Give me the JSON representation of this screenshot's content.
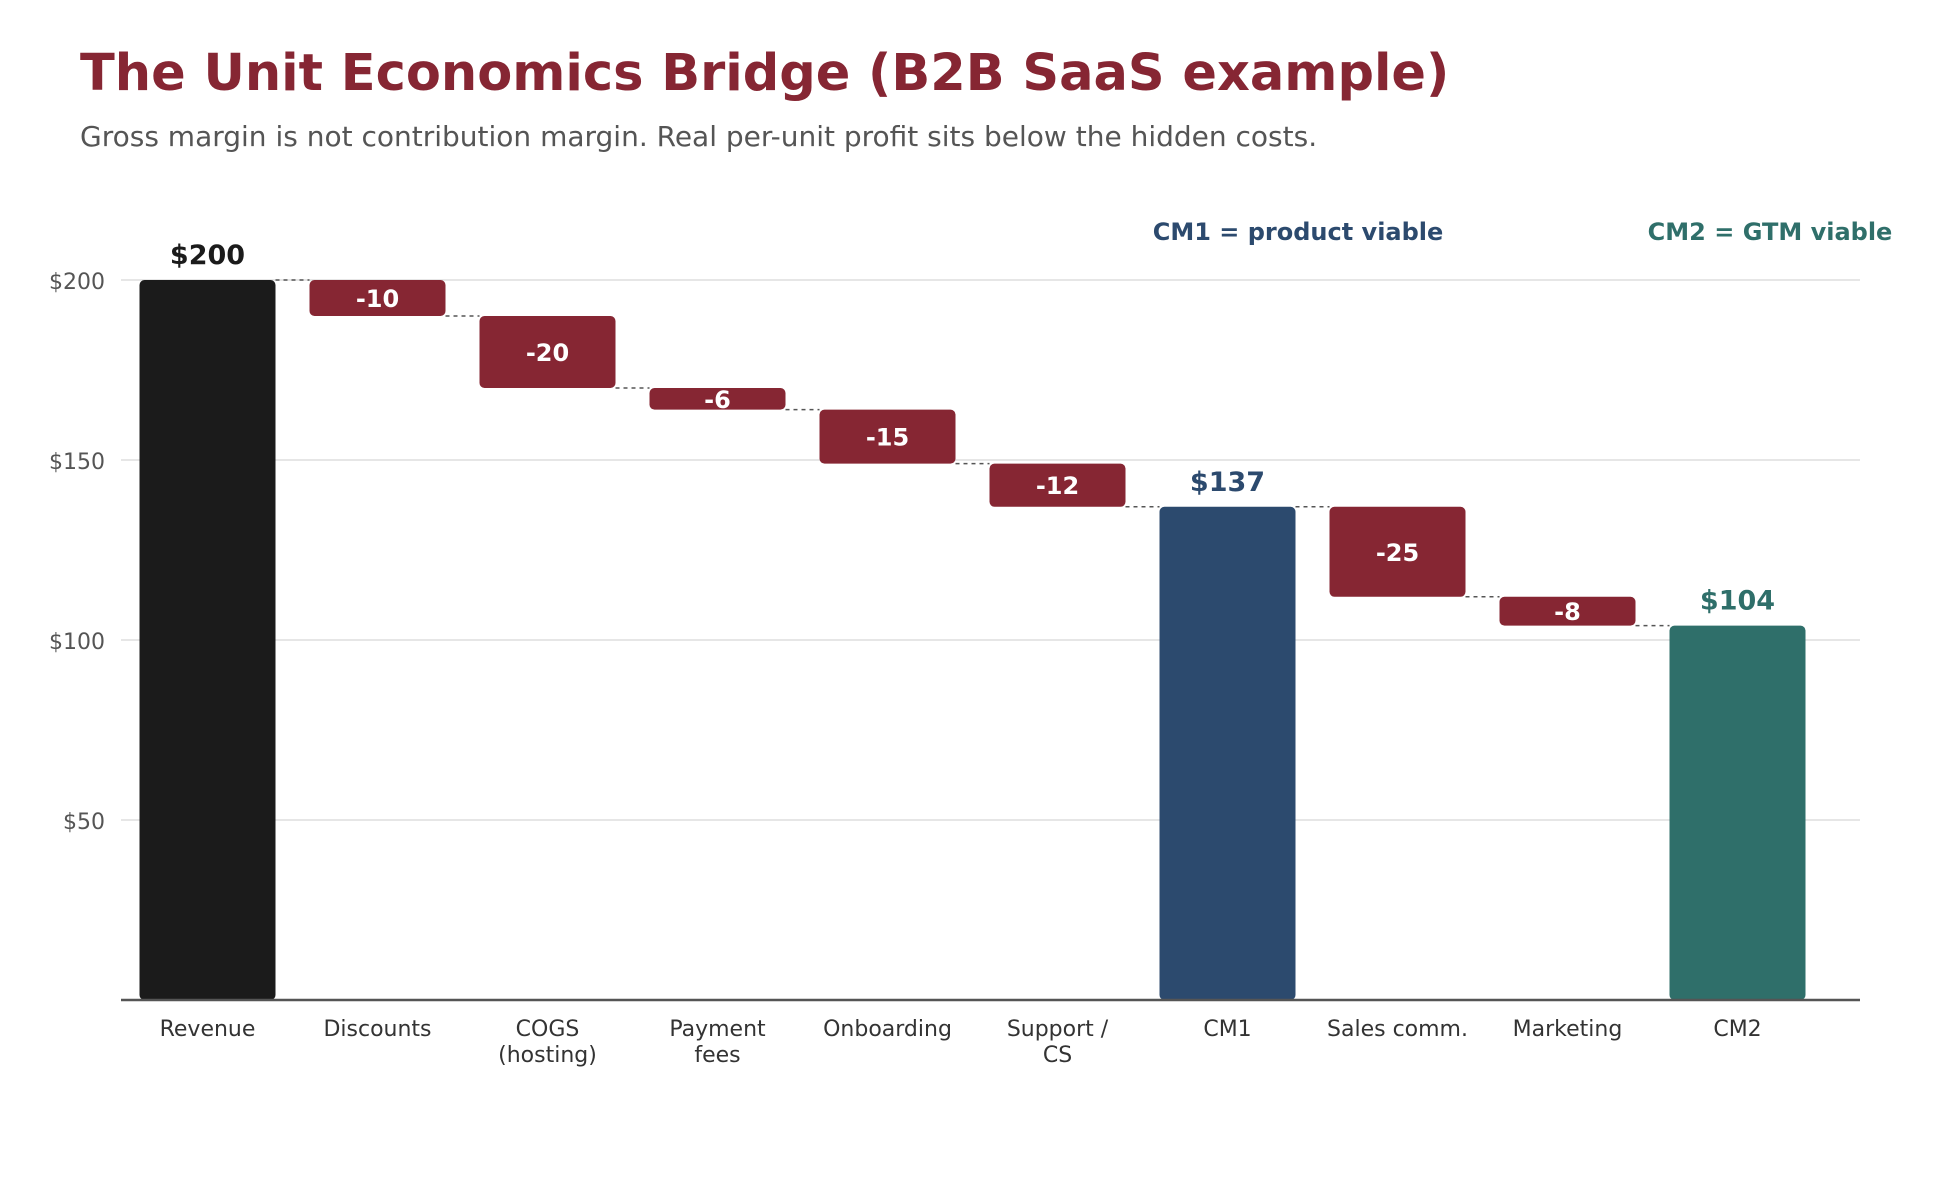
{
  "chart_data": {
    "type": "bar",
    "subtype": "waterfall",
    "title": "The Unit Economics Bridge (B2B SaaS example)",
    "subtitle": "Gross margin is not contribution margin. Real per-unit profit sits below the hidden costs.",
    "xlabel": "",
    "ylabel": "",
    "ylim": [
      0,
      200
    ],
    "yticks": [
      50,
      100,
      150,
      200
    ],
    "ytick_labels": [
      "$50",
      "$100",
      "$150",
      "$200"
    ],
    "grid": true,
    "bars": [
      {
        "category": [
          "Revenue"
        ],
        "kind": "total",
        "value": 200,
        "label": "$200",
        "color": "#1b1b1b"
      },
      {
        "category": [
          "Discounts"
        ],
        "kind": "delta",
        "value": -10,
        "label": "-10",
        "color": "#862633"
      },
      {
        "category": [
          "COGS",
          "(hosting)"
        ],
        "kind": "delta",
        "value": -20,
        "label": "-20",
        "color": "#862633"
      },
      {
        "category": [
          "Payment",
          "fees"
        ],
        "kind": "delta",
        "value": -6,
        "label": "-6",
        "color": "#862633"
      },
      {
        "category": [
          "Onboarding"
        ],
        "kind": "delta",
        "value": -15,
        "label": "-15",
        "color": "#862633"
      },
      {
        "category": [
          "Support /",
          "CS"
        ],
        "kind": "delta",
        "value": -12,
        "label": "-12",
        "color": "#862633"
      },
      {
        "category": [
          "CM1"
        ],
        "kind": "total",
        "value": 137,
        "label": "$137",
        "color": "#2c4a6e"
      },
      {
        "category": [
          "Sales comm."
        ],
        "kind": "delta",
        "value": -25,
        "label": "-25",
        "color": "#862633"
      },
      {
        "category": [
          "Marketing"
        ],
        "kind": "delta",
        "value": -8,
        "label": "-8",
        "color": "#862633"
      },
      {
        "category": [
          "CM2"
        ],
        "kind": "total",
        "value": 104,
        "label": "$104",
        "color": "#2f6f6a"
      }
    ],
    "annotations": [
      {
        "text": "CM1 = product viable",
        "color": "#2c4a6e",
        "anchor": "CM1"
      },
      {
        "text": "CM2 = GTM viable",
        "color": "#2f6f6a",
        "anchor": "CM2"
      }
    ]
  }
}
